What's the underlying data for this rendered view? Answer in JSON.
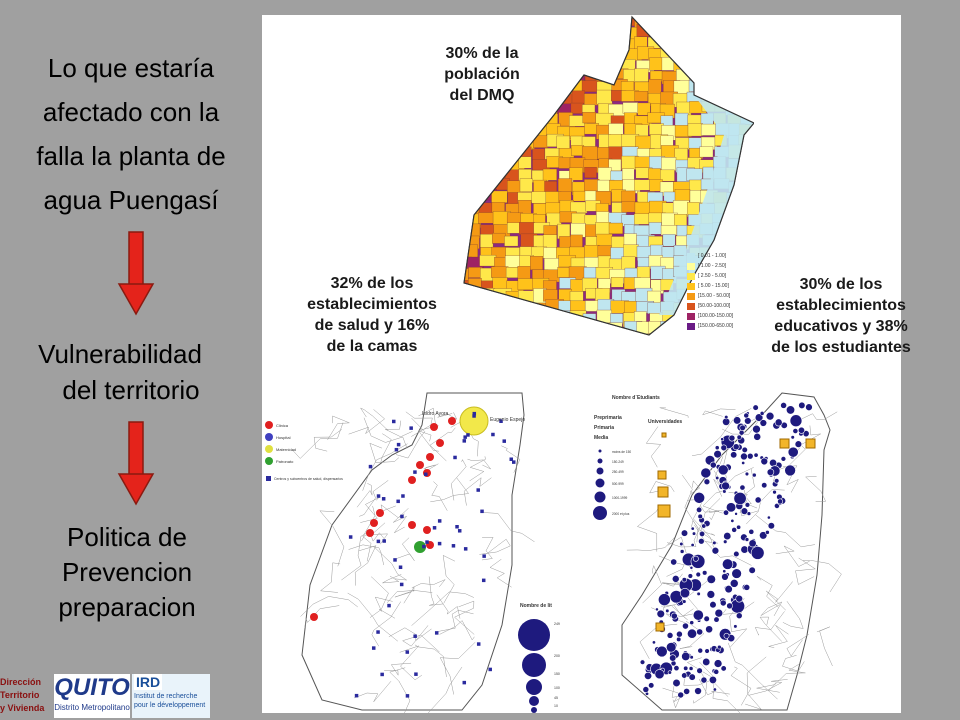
{
  "left": {
    "title": "Lo que estaría afectado con la falla la planta de agua Puengasí",
    "title_lines": [
      "Lo que estaría",
      "afectado con la",
      "falla la planta de",
      "agua Puengasí"
    ],
    "vuln_lines": [
      "Vulnerabilidad",
      "del territorio"
    ],
    "policy_lines": [
      "Politica de",
      "Prevencion",
      "preparacion"
    ]
  },
  "captions": {
    "population": [
      "30% de la",
      "población",
      "del DMQ"
    ],
    "health": [
      "32% de los",
      "establecimientos",
      "de salud y 16%",
      "de la camas"
    ],
    "education": [
      "30% de los",
      "establecimientos",
      "educativos y 38%",
      "de los estudiantes"
    ]
  },
  "population_legend": [
    "[ 0.01 - 1.00]",
    "[ 1.00 - 2.50]",
    "[ 2.50 - 5.00]",
    "[ 5.00 - 15.00]",
    "[15.00 - 50.00]",
    "[50.00-100.00]",
    "[100.00-150.00]",
    "[150.00-650.00]"
  ],
  "population_colors": [
    "#bfe6ef",
    "#ffff9a",
    "#ffe84a",
    "#ffc21a",
    "#f59a14",
    "#d8541d",
    "#9e2364",
    "#6a1b86"
  ],
  "health_legend": {
    "items": [
      "Clinica",
      "Hospital",
      "Maternidad",
      "Patronato"
    ],
    "colors": [
      "#e02020",
      "#4040c0",
      "#e0e040",
      "#30a030"
    ],
    "centros": "Centros y subcentros de salud, dispensarios",
    "label_left": "Isidro Ayora",
    "label_right": "Eugenio Espejo",
    "beds_title": "Nombre de lit",
    "beds_values": [
      "249",
      "200",
      "150",
      "100",
      "45",
      "10"
    ]
  },
  "education_legend": {
    "title": "Nombre d´Etudiants",
    "universities": "Universidades",
    "levels": [
      "Preprimaria",
      "Primaria",
      "Media"
    ],
    "ranges": [
      "moins de 150",
      "150-249",
      "250-499",
      "500-999",
      "1000-1999",
      "2000 et plus"
    ]
  },
  "logos": {
    "direccion": [
      "Dirección",
      "Territorio",
      "y Vivienda"
    ],
    "quito": "QUITO",
    "quito_sub": "Distrito Metropolitano",
    "ird": "IRD",
    "ird_sub": [
      "Institut de recherche",
      "pour le développement"
    ]
  }
}
